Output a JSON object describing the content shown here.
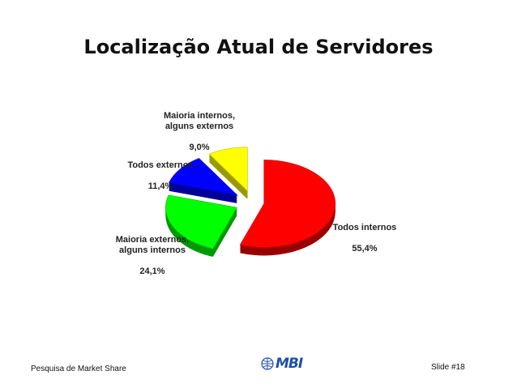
{
  "slide": {
    "title": "Localização Atual de Servidores",
    "footer_left": "Pesquisa de Market Share",
    "footer_right": "Slide #18",
    "logo_text": "MBI"
  },
  "chart_data": {
    "type": "pie",
    "title": "Localização Atual de Servidores",
    "slices": [
      {
        "label": "Todos internos",
        "value": 55.4,
        "value_label": "55,4%",
        "color": "#ff0000"
      },
      {
        "label": "Maioria externos, alguns internos",
        "value": 24.1,
        "value_label": "24,1%",
        "color": "#00ff00"
      },
      {
        "label": "Todos externos",
        "value": 11.4,
        "value_label": "11,4%",
        "color": "#0000ff"
      },
      {
        "label": "Maioria internos, alguns externos",
        "value": 9.0,
        "value_label": "9,0%",
        "color": "#ffff00"
      }
    ],
    "exploded": true,
    "style": "3d"
  }
}
